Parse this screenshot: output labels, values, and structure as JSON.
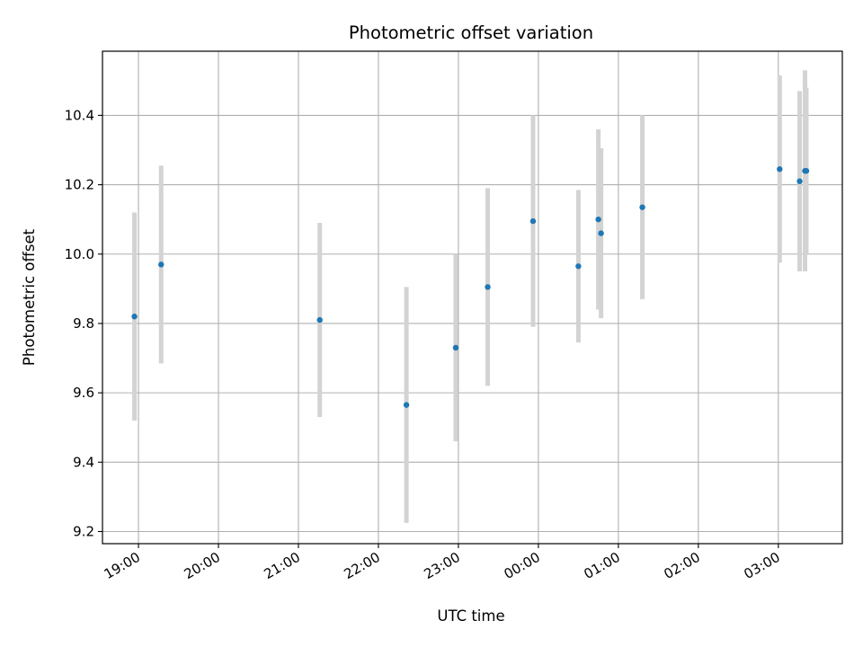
{
  "chart_data": {
    "type": "scatter",
    "title": "Photometric offset variation",
    "xlabel": "UTC time",
    "ylabel": "Photometric offset",
    "grid": true,
    "x_tick_labels": [
      "19:00",
      "20:00",
      "21:00",
      "22:00",
      "23:00",
      "00:00",
      "01:00",
      "02:00",
      "03:00"
    ],
    "y_tick_labels": [
      "9.2",
      "9.4",
      "9.6",
      "9.8",
      "10.0",
      "10.2",
      "10.4"
    ],
    "x": [
      "18:57",
      "19:17",
      "21:16",
      "22:21",
      "22:58",
      "23:22",
      "23:56",
      "00:30",
      "00:45",
      "00:47",
      "01:18",
      "03:01",
      "03:16",
      "03:20",
      "03:21"
    ],
    "y": [
      9.82,
      9.97,
      9.81,
      9.565,
      9.73,
      9.905,
      10.095,
      9.965,
      10.1,
      10.06,
      10.135,
      10.245,
      10.21,
      10.24,
      10.24
    ],
    "yerr": [
      0.3,
      0.285,
      0.28,
      0.34,
      0.27,
      0.285,
      0.305,
      0.22,
      0.26,
      0.245,
      0.265,
      0.27,
      0.26,
      0.29,
      0.24
    ],
    "ylim": [
      9.165,
      10.585
    ],
    "xlim": [
      "18:33",
      "03:48"
    ],
    "colors": {
      "points": "#1f77b4",
      "errorbars": "#d3d3d3",
      "grid": "#b0b0b0"
    }
  }
}
